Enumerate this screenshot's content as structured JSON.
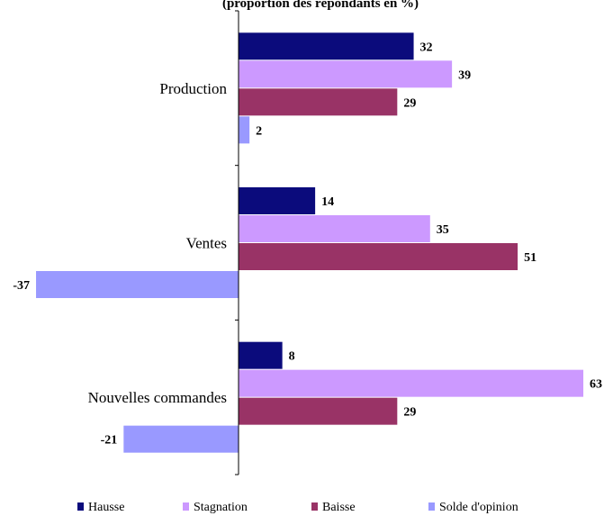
{
  "chart_data": {
    "type": "bar",
    "orientation": "horizontal",
    "title": "(proportion des répondants en %)",
    "categories": [
      "Production",
      "Ventes",
      "Nouvelles commandes"
    ],
    "series": [
      {
        "name": "Hausse",
        "color": "#0B0B7C",
        "values": [
          32,
          14,
          8
        ]
      },
      {
        "name": "Stagnation",
        "color": "#CC99FF",
        "values": [
          39,
          35,
          63
        ]
      },
      {
        "name": "Baisse",
        "color": "#993366",
        "values": [
          29,
          51,
          29
        ]
      },
      {
        "name": "Solde d'opinion",
        "color": "#9999FF",
        "values": [
          2,
          -37,
          -21
        ]
      }
    ],
    "xlim": [
      -37,
      63
    ],
    "legend_position": "bottom",
    "grid": false
  }
}
